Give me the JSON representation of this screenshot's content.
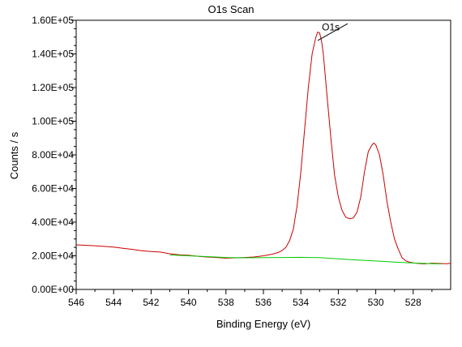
{
  "chart_data": {
    "type": "line",
    "title": "O1s Scan",
    "xlabel": "Binding Energy (eV)",
    "ylabel": "Counts / s",
    "xlim": [
      546,
      526
    ],
    "ylim": [
      0,
      160000
    ],
    "x_reversed": true,
    "grid": false,
    "x_ticks": [
      546,
      544,
      542,
      540,
      538,
      536,
      534,
      532,
      530,
      528
    ],
    "x_tick_labels": [
      "546",
      "544",
      "542",
      "540",
      "538",
      "536",
      "534",
      "532",
      "530",
      "528"
    ],
    "y_ticks": [
      0,
      20000,
      40000,
      60000,
      80000,
      100000,
      120000,
      140000,
      160000
    ],
    "y_tick_labels": [
      "0.00E+00",
      "2.00E+04",
      "4.00E+04",
      "6.00E+04",
      "8.00E+04",
      "1.00E+05",
      "1.20E+05",
      "1.40E+05",
      "1.60E+05"
    ],
    "annotations": [
      {
        "text": "O1s",
        "x": 532.4,
        "y": 154000,
        "leader_from": [
          533.1,
          148000
        ],
        "leader_to": [
          531.5,
          158000
        ]
      }
    ],
    "series": [
      {
        "color": "#cc0000",
        "x": [
          546,
          545,
          544,
          543.5,
          543,
          542.5,
          542,
          541.5,
          541,
          540.5,
          540,
          539.5,
          539,
          538.5,
          538,
          537.5,
          537,
          536.5,
          536,
          535.5,
          535.2,
          535,
          534.8,
          534.6,
          534.4,
          534.2,
          534,
          533.8,
          533.6,
          533.4,
          533.2,
          533.1,
          533,
          532.9,
          532.8,
          532.6,
          532.4,
          532.2,
          532,
          531.8,
          531.6,
          531.4,
          531.2,
          531,
          530.8,
          530.6,
          530.4,
          530.2,
          530.1,
          530,
          529.8,
          529.6,
          529.4,
          529.2,
          529,
          528.8,
          528.6,
          528.4,
          528.2,
          528,
          527.8,
          527.6,
          527.4,
          527,
          526.6,
          526.2,
          526
        ],
        "y": [
          26500,
          26000,
          25200,
          24500,
          23800,
          23000,
          22500,
          22200,
          21200,
          20600,
          20300,
          19700,
          19300,
          19000,
          18600,
          18800,
          19000,
          19300,
          20000,
          21000,
          22000,
          23200,
          25000,
          29000,
          36000,
          50000,
          70000,
          95000,
          120000,
          140000,
          150000,
          153000,
          152500,
          148000,
          140000,
          115000,
          90000,
          68000,
          55000,
          47000,
          43000,
          42000,
          42500,
          46000,
          55000,
          70000,
          82000,
          86000,
          87000,
          86000,
          80000,
          68000,
          52000,
          40000,
          30000,
          24000,
          19000,
          17000,
          16200,
          15800,
          15500,
          15300,
          15200,
          15600,
          15400,
          15300,
          15500
        ]
      },
      {
        "color": "#00cc00",
        "x": [
          541,
          540,
          539,
          538,
          537,
          536,
          535,
          534,
          533,
          532,
          531,
          530,
          529,
          528,
          527,
          526.5
        ],
        "y": [
          20500,
          20000,
          19500,
          19000,
          18800,
          18900,
          19000,
          19100,
          18900,
          18200,
          17500,
          16900,
          16300,
          15700,
          15300,
          15200
        ]
      }
    ]
  }
}
